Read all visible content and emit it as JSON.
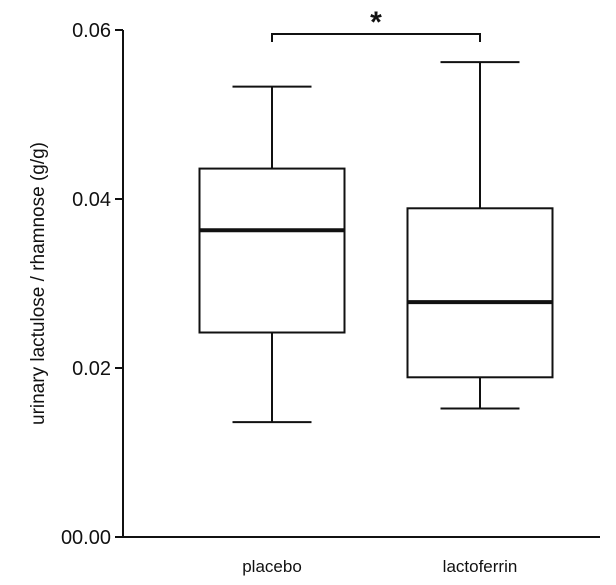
{
  "chart_data": {
    "type": "box",
    "ylabel": "urinary lactulose / rhamnose (g/g)",
    "xlabel": "",
    "ylim": [
      0,
      0.06
    ],
    "yticks": [
      {
        "value": 0.0,
        "label": "00.00"
      },
      {
        "value": 0.02,
        "label": "0.02"
      },
      {
        "value": 0.04,
        "label": "0.04"
      },
      {
        "value": 0.06,
        "label": "0.06"
      }
    ],
    "categories": [
      "placebo",
      "lactoferrin"
    ],
    "boxes": [
      {
        "category": "placebo",
        "min": 0.0136,
        "q1": 0.0242,
        "median": 0.0363,
        "q3": 0.0436,
        "max": 0.0533
      },
      {
        "category": "lactoferrin",
        "min": 0.0152,
        "q1": 0.0189,
        "median": 0.0278,
        "q3": 0.0389,
        "max": 0.0562
      }
    ],
    "annotations": [
      {
        "type": "significance-bracket",
        "from": "placebo",
        "to": "lactoferrin",
        "label": "*"
      }
    ],
    "grid": false,
    "legend": "none"
  },
  "colors": {
    "axis": "#111111",
    "box_fill": "#ffffff",
    "box_stroke": "#111111",
    "median": "#111111"
  }
}
